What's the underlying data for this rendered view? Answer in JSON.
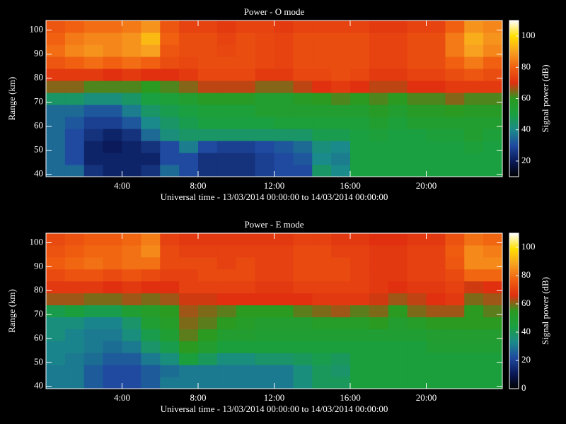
{
  "chart_data": [
    {
      "type": "heatmap",
      "title": "Power - O mode",
      "xlabel": "Universal time - 13/03/2014 00:00:00 to 14/03/2014 00:00:00",
      "ylabel": "Range (km)",
      "colorbar_label": "Signal power (dB)",
      "xlim": [
        0,
        24
      ],
      "ylim": [
        39,
        104
      ],
      "clim": [
        10,
        110
      ],
      "xticks": [
        {
          "value": 4,
          "label": "4:00"
        },
        {
          "value": 8,
          "label": "8:00"
        },
        {
          "value": 12,
          "label": "12:00"
        },
        {
          "value": 16,
          "label": "16:00"
        },
        {
          "value": 20,
          "label": "20:00"
        }
      ],
      "yticks": [
        40,
        50,
        60,
        70,
        80,
        90,
        100
      ],
      "cticks": [
        20,
        40,
        60,
        80,
        100
      ],
      "colormap": [
        "#000000",
        "#0a1a5a",
        "#1f4aa0",
        "#1a8a8a",
        "#1aa040",
        "#2a9a20",
        "#e03010",
        "#f06010",
        "#f8a020",
        "#ffe000",
        "#ffffff"
      ],
      "x_edges": [
        0,
        1,
        2,
        3,
        4,
        5,
        6,
        7,
        8,
        9,
        10,
        11,
        12,
        13,
        14,
        15,
        16,
        17,
        18,
        19,
        20,
        21,
        22,
        23,
        24
      ],
      "y_edges": [
        39,
        44,
        49,
        54,
        59,
        64,
        69,
        74,
        79,
        84,
        89,
        94,
        99,
        104
      ],
      "values": [
        [
          35,
          35,
          25,
          22,
          22,
          25,
          35,
          30,
          25,
          25,
          25,
          28,
          30,
          30,
          45,
          40,
          50,
          50,
          50,
          50,
          50,
          50,
          50,
          50
        ],
        [
          35,
          30,
          22,
          22,
          22,
          22,
          30,
          30,
          25,
          25,
          25,
          28,
          30,
          32,
          40,
          38,
          50,
          50,
          50,
          50,
          50,
          50,
          50,
          50
        ],
        [
          35,
          30,
          22,
          20,
          22,
          25,
          30,
          38,
          30,
          28,
          28,
          30,
          32,
          35,
          42,
          40,
          50,
          50,
          50,
          50,
          50,
          50,
          52,
          50
        ],
        [
          35,
          30,
          25,
          22,
          25,
          35,
          42,
          45,
          45,
          45,
          45,
          45,
          45,
          45,
          48,
          48,
          50,
          52,
          50,
          50,
          52,
          52,
          55,
          52
        ],
        [
          35,
          32,
          28,
          28,
          32,
          40,
          45,
          48,
          50,
          50,
          50,
          50,
          52,
          52,
          52,
          52,
          52,
          55,
          52,
          55,
          55,
          55,
          55,
          55
        ],
        [
          35,
          35,
          32,
          32,
          38,
          45,
          48,
          50,
          52,
          52,
          52,
          55,
          55,
          55,
          55,
          55,
          55,
          58,
          55,
          58,
          58,
          60,
          58,
          58
        ],
        [
          45,
          45,
          42,
          42,
          45,
          50,
          52,
          55,
          58,
          58,
          58,
          55,
          55,
          58,
          60,
          62,
          60,
          62,
          60,
          62,
          62,
          65,
          62,
          62
        ],
        [
          65,
          65,
          62,
          62,
          62,
          60,
          62,
          65,
          68,
          68,
          68,
          65,
          65,
          68,
          70,
          72,
          70,
          68,
          68,
          70,
          70,
          72,
          72,
          72
        ],
        [
          72,
          72,
          72,
          70,
          72,
          70,
          70,
          72,
          75,
          75,
          75,
          72,
          72,
          75,
          75,
          76,
          75,
          72,
          72,
          74,
          74,
          76,
          78,
          76
        ],
        [
          78,
          80,
          82,
          80,
          82,
          80,
          76,
          75,
          76,
          76,
          76,
          75,
          74,
          76,
          76,
          76,
          76,
          74,
          74,
          76,
          76,
          80,
          84,
          80
        ],
        [
          82,
          86,
          88,
          86,
          88,
          90,
          78,
          76,
          76,
          75,
          76,
          75,
          74,
          76,
          76,
          76,
          76,
          74,
          74,
          76,
          76,
          84,
          90,
          86
        ],
        [
          80,
          84,
          86,
          86,
          88,
          94,
          80,
          76,
          76,
          74,
          76,
          75,
          74,
          76,
          76,
          76,
          76,
          74,
          74,
          76,
          76,
          84,
          92,
          88
        ],
        [
          78,
          80,
          82,
          82,
          84,
          88,
          78,
          74,
          74,
          72,
          74,
          74,
          72,
          74,
          74,
          74,
          74,
          72,
          72,
          74,
          74,
          80,
          88,
          86
        ]
      ]
    },
    {
      "type": "heatmap",
      "title": "Power - E mode",
      "xlabel": "Universal time - 13/03/2014 00:00:00 to 14/03/2014 00:00:00",
      "ylabel": "Range (km)",
      "colorbar_label": "Signal power (dB)",
      "xlim": [
        0,
        24
      ],
      "ylim": [
        39,
        104
      ],
      "clim": [
        0,
        110
      ],
      "xticks": [
        {
          "value": 4,
          "label": "4:00"
        },
        {
          "value": 8,
          "label": "8:00"
        },
        {
          "value": 12,
          "label": "12:00"
        },
        {
          "value": 16,
          "label": "16:00"
        },
        {
          "value": 20,
          "label": "20:00"
        }
      ],
      "yticks": [
        40,
        50,
        60,
        70,
        80,
        90,
        100
      ],
      "cticks": [
        0,
        20,
        40,
        60,
        80,
        100
      ],
      "colormap": [
        "#000000",
        "#0a1a5a",
        "#1f4aa0",
        "#1a8a8a",
        "#1aa040",
        "#2a9a20",
        "#e03010",
        "#f06010",
        "#f8a020",
        "#ffe000",
        "#ffffff"
      ],
      "x_edges": [
        0,
        1,
        2,
        3,
        4,
        5,
        6,
        7,
        8,
        9,
        10,
        11,
        12,
        13,
        14,
        15,
        16,
        17,
        18,
        19,
        20,
        21,
        22,
        23,
        24
      ],
      "y_edges": [
        39,
        44,
        49,
        54,
        59,
        64,
        69,
        74,
        79,
        84,
        89,
        94,
        99,
        104
      ],
      "values": [
        [
          30,
          30,
          25,
          22,
          22,
          25,
          30,
          30,
          30,
          30,
          30,
          30,
          30,
          35,
          40,
          40,
          45,
          45,
          45,
          45,
          45,
          45,
          45,
          45
        ],
        [
          30,
          30,
          25,
          22,
          22,
          25,
          28,
          30,
          30,
          30,
          30,
          30,
          30,
          35,
          40,
          38,
          45,
          45,
          45,
          45,
          45,
          45,
          45,
          45
        ],
        [
          32,
          30,
          28,
          25,
          25,
          30,
          35,
          45,
          40,
          35,
          35,
          38,
          38,
          40,
          42,
          40,
          45,
          45,
          45,
          45,
          45,
          45,
          45,
          45
        ],
        [
          32,
          32,
          30,
          28,
          30,
          38,
          42,
          55,
          50,
          45,
          45,
          45,
          45,
          45,
          45,
          45,
          45,
          45,
          45,
          45,
          48,
          48,
          48,
          48
        ],
        [
          35,
          32,
          30,
          30,
          35,
          42,
          48,
          58,
          55,
          50,
          50,
          48,
          48,
          48,
          48,
          48,
          48,
          48,
          48,
          48,
          50,
          50,
          50,
          50
        ],
        [
          35,
          35,
          32,
          32,
          38,
          48,
          52,
          60,
          58,
          55,
          52,
          50,
          50,
          50,
          52,
          52,
          52,
          55,
          50,
          52,
          55,
          55,
          55,
          55
        ],
        [
          42,
          45,
          42,
          42,
          48,
          52,
          55,
          62,
          60,
          58,
          55,
          55,
          55,
          58,
          60,
          62,
          58,
          60,
          55,
          60,
          62,
          62,
          55,
          58
        ],
        [
          62,
          62,
          60,
          60,
          62,
          60,
          62,
          65,
          65,
          66,
          66,
          66,
          66,
          66,
          68,
          68,
          68,
          65,
          62,
          64,
          66,
          68,
          60,
          62
        ],
        [
          68,
          68,
          68,
          66,
          68,
          66,
          66,
          70,
          70,
          70,
          70,
          68,
          68,
          70,
          70,
          70,
          70,
          68,
          66,
          68,
          68,
          70,
          65,
          66
        ],
        [
          72,
          74,
          74,
          72,
          74,
          72,
          70,
          70,
          72,
          72,
          72,
          70,
          70,
          72,
          72,
          72,
          70,
          68,
          68,
          70,
          70,
          72,
          78,
          78
        ],
        [
          76,
          78,
          80,
          78,
          80,
          80,
          72,
          72,
          72,
          70,
          72,
          70,
          70,
          72,
          72,
          72,
          70,
          68,
          68,
          70,
          70,
          75,
          84,
          84
        ],
        [
          74,
          76,
          78,
          78,
          80,
          84,
          72,
          70,
          70,
          70,
          70,
          70,
          70,
          72,
          72,
          70,
          70,
          68,
          68,
          70,
          70,
          76,
          84,
          82
        ],
        [
          72,
          74,
          76,
          76,
          78,
          82,
          70,
          68,
          68,
          68,
          68,
          68,
          68,
          70,
          70,
          68,
          68,
          66,
          66,
          68,
          68,
          74,
          80,
          78
        ]
      ]
    }
  ]
}
